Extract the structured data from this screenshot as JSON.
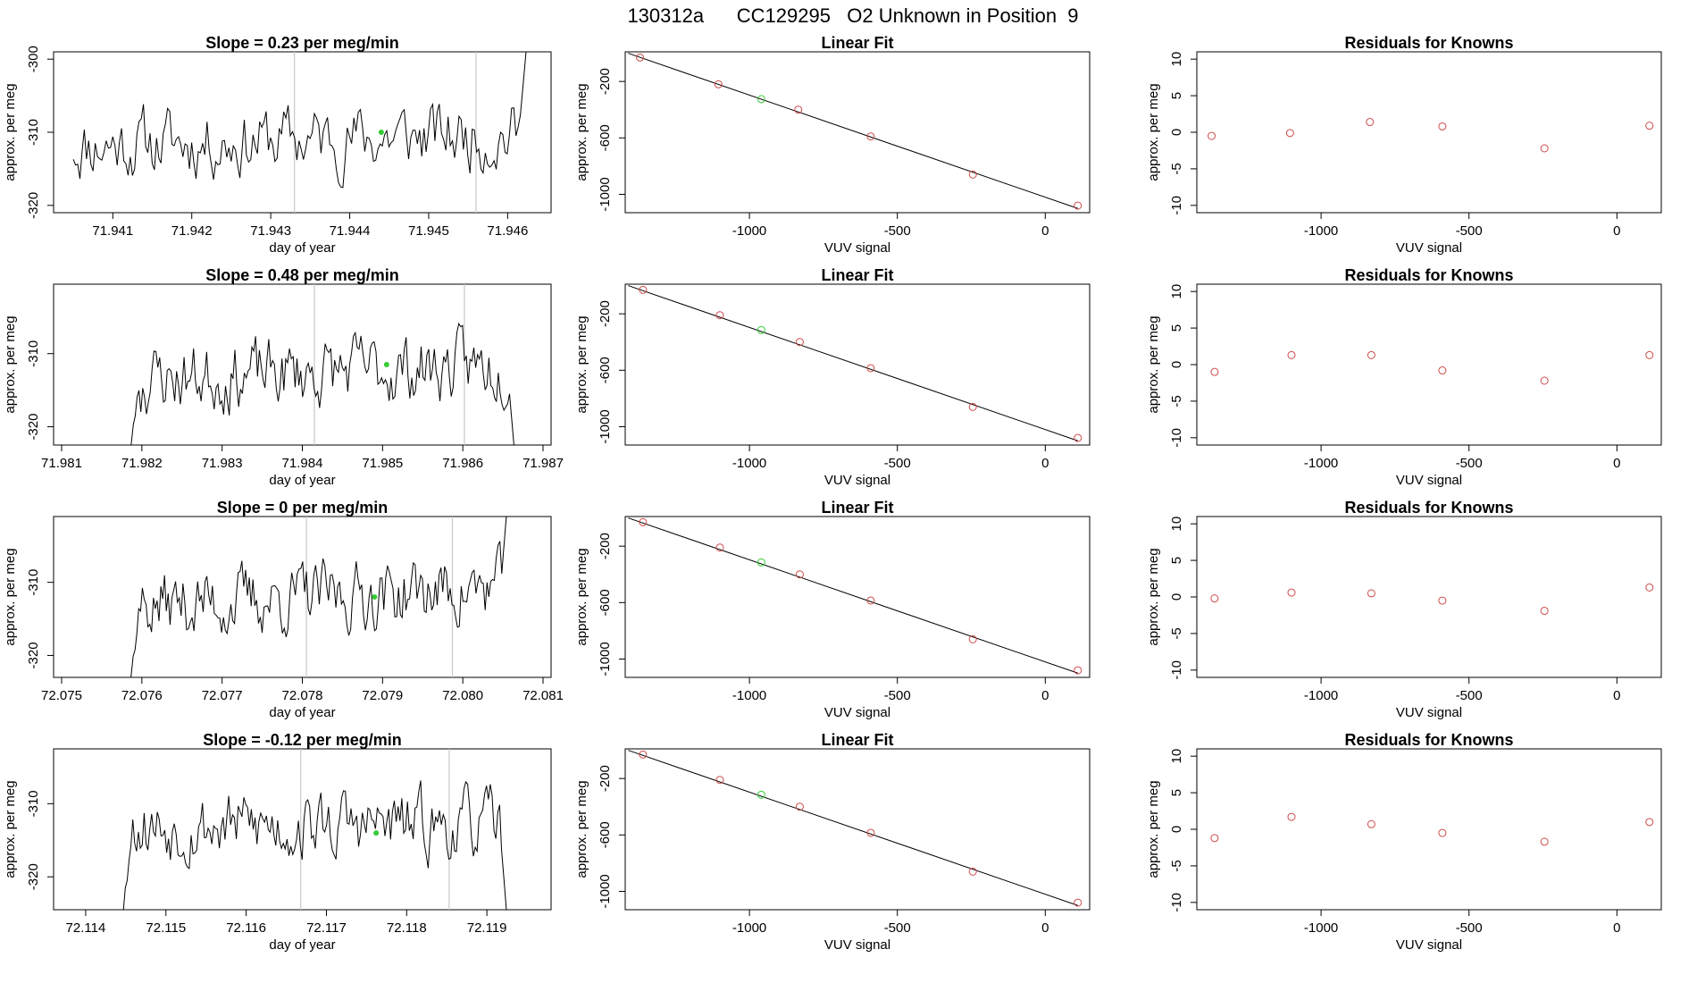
{
  "page_title": "130312a      CC129295   O2 Unknown in Position  9",
  "chart_data": [
    {
      "row": 0,
      "time_series": {
        "type": "line",
        "title": "Slope =  0.23  per meg/min",
        "xlabel": "day of year",
        "ylabel": "approx. per meg",
        "x_ticks": [
          71.941,
          71.942,
          71.943,
          71.944,
          71.945,
          71.946
        ],
        "x_tick_labels": [
          "71.941",
          "71.942",
          "71.943",
          "71.944",
          "71.945",
          "71.946"
        ],
        "y_ticks": [
          -300,
          -310,
          -320
        ],
        "y_tick_labels": [
          "-300",
          "-310",
          "-320"
        ],
        "xlim": [
          71.94025,
          71.94655
        ],
        "ylim": [
          -321,
          -299
        ],
        "start": 71.9405,
        "end": 71.9463,
        "vlines": [
          71.9433,
          71.9456
        ],
        "baseline": -311,
        "trend": 1.5,
        "edge_start": "none",
        "edge_end": "up",
        "marker": {
          "x": 71.9444,
          "y": -310
        },
        "seed": 11
      },
      "linear_fit": {
        "type": "scatter",
        "title": "Linear Fit",
        "xlabel": "VUV signal",
        "ylabel": "approx. per meg",
        "x_ticks": [
          -1000,
          -500,
          0
        ],
        "x_tick_labels": [
          "-1000",
          "-500",
          "0"
        ],
        "y_ticks": [
          -200,
          -600,
          -1000
        ],
        "y_tick_labels": [
          "-200",
          "-600",
          "-1000"
        ],
        "xlim": [
          -1420,
          150
        ],
        "ylim": [
          -1130,
          10
        ],
        "line": [
          [
            -1410,
            0
          ],
          [
            110,
            -1100
          ]
        ],
        "knowns_x": [
          -1370,
          -1105,
          -835,
          -590,
          -245,
          110
        ],
        "knowns_y": [
          -30,
          -220,
          -400,
          -590,
          -860,
          -1080
        ],
        "unknown": [
          -960,
          -325
        ]
      },
      "residuals": {
        "type": "scatter",
        "title": "Residuals for Knowns",
        "xlabel": "VUV signal",
        "ylabel": "approx. per meg",
        "x_ticks": [
          -1000,
          -500,
          0
        ],
        "x_tick_labels": [
          "-1000",
          "-500",
          "0"
        ],
        "y_ticks": [
          10,
          5,
          0,
          -5,
          -10
        ],
        "y_tick_labels": [
          "10",
          "5",
          "0",
          "-5",
          "-10"
        ],
        "xlim": [
          -1420,
          150
        ],
        "ylim": [
          -11,
          11
        ],
        "x": [
          -1370,
          -1105,
          -835,
          -590,
          -245,
          110
        ],
        "y": [
          -0.5,
          -0.1,
          1.4,
          0.8,
          -2.2,
          0.9
        ]
      }
    },
    {
      "row": 1,
      "time_series": {
        "type": "line",
        "title": "Slope =  0.48  per meg/min",
        "xlabel": "day of year",
        "ylabel": "approx. per meg",
        "x_ticks": [
          71.981,
          71.982,
          71.983,
          71.984,
          71.985,
          71.986,
          71.987
        ],
        "x_tick_labels": [
          "71.981",
          "71.982",
          "71.983",
          "71.984",
          "71.985",
          "71.986",
          "71.987"
        ],
        "y_ticks": [
          -310,
          -320
        ],
        "y_tick_labels": [
          "-310",
          "-320"
        ],
        "xlim": [
          71.9809,
          71.9871
        ],
        "ylim": [
          -322.5,
          -300.5
        ],
        "start": 71.9818,
        "end": 71.9867,
        "vlines": [
          71.98415,
          71.98602
        ],
        "baseline": -312.5,
        "trend": 2,
        "edge_start": "down",
        "edge_end": "down",
        "marker": {
          "x": 71.98505,
          "y": -311.5
        },
        "seed": 23
      },
      "linear_fit": {
        "type": "scatter",
        "title": "Linear Fit",
        "xlabel": "VUV signal",
        "ylabel": "approx. per meg",
        "x_ticks": [
          -1000,
          -500,
          0
        ],
        "x_tick_labels": [
          "-1000",
          "-500",
          "0"
        ],
        "y_ticks": [
          -200,
          -600,
          -1000
        ],
        "y_tick_labels": [
          "-200",
          "-600",
          "-1000"
        ],
        "xlim": [
          -1420,
          150
        ],
        "ylim": [
          -1130,
          10
        ],
        "line": [
          [
            -1410,
            0
          ],
          [
            110,
            -1100
          ]
        ],
        "knowns_x": [
          -1360,
          -1100,
          -830,
          -590,
          -245,
          110
        ],
        "knowns_y": [
          -30,
          -210,
          -400,
          -585,
          -860,
          -1080
        ],
        "unknown": [
          -960,
          -315
        ]
      },
      "residuals": {
        "type": "scatter",
        "title": "Residuals for Knowns",
        "xlabel": "VUV signal",
        "ylabel": "approx. per meg",
        "x_ticks": [
          -1000,
          -500,
          0
        ],
        "x_tick_labels": [
          "-1000",
          "-500",
          "0"
        ],
        "y_ticks": [
          10,
          5,
          0,
          -5,
          -10
        ],
        "y_tick_labels": [
          "10",
          "5",
          "0",
          "-5",
          "-10"
        ],
        "xlim": [
          -1420,
          150
        ],
        "ylim": [
          -11,
          11
        ],
        "x": [
          -1360,
          -1100,
          -830,
          -590,
          -245,
          110
        ],
        "y": [
          -1.0,
          1.3,
          1.3,
          -0.8,
          -2.2,
          1.3
        ]
      }
    },
    {
      "row": 2,
      "time_series": {
        "type": "line",
        "title": "Slope =  0  per meg/min",
        "xlabel": "day of year",
        "ylabel": "approx. per meg",
        "x_ticks": [
          72.075,
          72.076,
          72.077,
          72.078,
          72.079,
          72.08,
          72.081
        ],
        "x_tick_labels": [
          "72.075",
          "72.076",
          "72.077",
          "72.078",
          "72.079",
          "72.080",
          "72.081"
        ],
        "y_ticks": [
          -310,
          -320
        ],
        "y_tick_labels": [
          "-310",
          "-320"
        ],
        "xlim": [
          72.0749,
          72.0811
        ],
        "ylim": [
          -323,
          -301
        ],
        "start": 72.0758,
        "end": 72.0806,
        "vlines": [
          72.07805,
          72.07987
        ],
        "baseline": -312,
        "trend": 2.5,
        "edge_start": "down",
        "edge_end": "up",
        "marker": {
          "x": 72.0789,
          "y": -312
        },
        "seed": 37
      },
      "linear_fit": {
        "type": "scatter",
        "title": "Linear Fit",
        "xlabel": "VUV signal",
        "ylabel": "approx. per meg",
        "x_ticks": [
          -1000,
          -500,
          0
        ],
        "x_tick_labels": [
          "-1000",
          "-500",
          "0"
        ],
        "y_ticks": [
          -200,
          -600,
          -1000
        ],
        "y_tick_labels": [
          "-200",
          "-600",
          "-1000"
        ],
        "xlim": [
          -1420,
          150
        ],
        "ylim": [
          -1130,
          10
        ],
        "line": [
          [
            -1410,
            0
          ],
          [
            110,
            -1100
          ]
        ],
        "knowns_x": [
          -1360,
          -1100,
          -830,
          -590,
          -245,
          110
        ],
        "knowns_y": [
          -30,
          -210,
          -400,
          -585,
          -860,
          -1080
        ],
        "unknown": [
          -960,
          -315
        ]
      },
      "residuals": {
        "type": "scatter",
        "title": "Residuals for Knowns",
        "xlabel": "VUV signal",
        "ylabel": "approx. per meg",
        "x_ticks": [
          -1000,
          -500,
          0
        ],
        "x_tick_labels": [
          "-1000",
          "-500",
          "0"
        ],
        "y_ticks": [
          10,
          5,
          0,
          -5,
          -10
        ],
        "y_tick_labels": [
          "10",
          "5",
          "0",
          "-5",
          "-10"
        ],
        "xlim": [
          -1420,
          150
        ],
        "ylim": [
          -11,
          11
        ],
        "x": [
          -1360,
          -1100,
          -830,
          -590,
          -245,
          110
        ],
        "y": [
          -0.2,
          0.6,
          0.5,
          -0.5,
          -1.9,
          1.3
        ]
      }
    },
    {
      "row": 3,
      "time_series": {
        "type": "line",
        "title": "Slope =  -0.12  per meg/min",
        "xlabel": "day of year",
        "ylabel": "approx. per meg",
        "x_ticks": [
          72.114,
          72.115,
          72.116,
          72.117,
          72.118,
          72.119
        ],
        "x_tick_labels": [
          "72.114",
          "72.115",
          "72.116",
          "72.117",
          "72.118",
          "72.119"
        ],
        "y_ticks": [
          -310,
          -320
        ],
        "y_tick_labels": [
          "-310",
          "-320"
        ],
        "xlim": [
          72.1136,
          72.1198
        ],
        "ylim": [
          -324.5,
          -302.5
        ],
        "start": 72.1144,
        "end": 72.1193,
        "vlines": [
          72.11668,
          72.11853
        ],
        "baseline": -313,
        "trend": 0,
        "edge_start": "down",
        "edge_end": "down",
        "marker": {
          "x": 72.11762,
          "y": -314
        },
        "seed": 53
      },
      "linear_fit": {
        "type": "scatter",
        "title": "Linear Fit",
        "xlabel": "VUV signal",
        "ylabel": "approx. per meg",
        "x_ticks": [
          -1000,
          -500,
          0
        ],
        "x_tick_labels": [
          "-1000",
          "-500",
          "0"
        ],
        "y_ticks": [
          -200,
          -600,
          -1000
        ],
        "y_tick_labels": [
          "-200",
          "-600",
          "-1000"
        ],
        "xlim": [
          -1420,
          150
        ],
        "ylim": [
          -1130,
          10
        ],
        "line": [
          [
            -1410,
            0
          ],
          [
            110,
            -1100
          ]
        ],
        "knowns_x": [
          -1360,
          -1100,
          -830,
          -590,
          -245,
          110
        ],
        "knowns_y": [
          -30,
          -210,
          -400,
          -585,
          -860,
          -1080
        ],
        "unknown": [
          -960,
          -315
        ]
      },
      "residuals": {
        "type": "scatter",
        "title": "Residuals for Knowns",
        "xlabel": "VUV signal",
        "ylabel": "approx. per meg",
        "x_ticks": [
          -1000,
          -500,
          0
        ],
        "x_tick_labels": [
          "-1000",
          "-500",
          "0"
        ],
        "y_ticks": [
          10,
          5,
          0,
          -5,
          -10
        ],
        "y_tick_labels": [
          "10",
          "5",
          "0",
          "-5",
          "-10"
        ],
        "xlim": [
          -1420,
          150
        ],
        "ylim": [
          -11,
          11
        ],
        "x": [
          -1360,
          -1100,
          -830,
          -590,
          -245,
          110
        ],
        "y": [
          -1.2,
          1.7,
          0.7,
          -0.5,
          -1.7,
          1.0
        ]
      }
    }
  ],
  "colors": {
    "line": "#000000",
    "vline": "#c8c8c8",
    "known_point": "#d04a4a",
    "unknown_point": "#33cc33",
    "marker": "#33cc33"
  }
}
